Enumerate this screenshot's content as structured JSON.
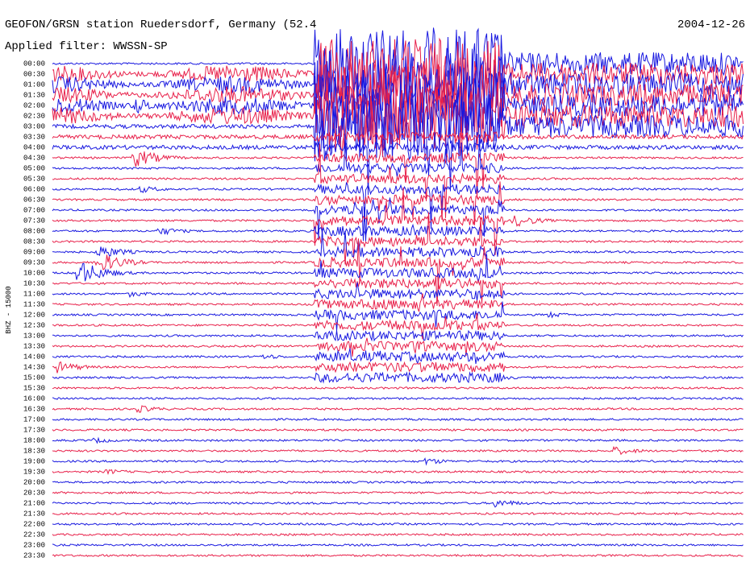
{
  "header": {
    "title": "GEOFON/GRSN station Ruedersdorf, Germany (52.4",
    "date": "2004-12-26",
    "filter": "Applied filter: WWSSN-SP"
  },
  "axis_label": "BHZ - 15000",
  "rows": [
    "00:00",
    "00:30",
    "01:00",
    "01:30",
    "02:00",
    "02:30",
    "03:00",
    "03:30",
    "04:00",
    "04:30",
    "05:00",
    "05:30",
    "06:00",
    "06:30",
    "07:00",
    "07:30",
    "08:00",
    "08:30",
    "09:00",
    "09:30",
    "10:00",
    "10:30",
    "11:00",
    "11:30",
    "12:00",
    "12:30",
    "13:00",
    "13:30",
    "14:00",
    "14:30",
    "15:00",
    "15:30",
    "16:00",
    "16:30",
    "17:00",
    "17:30",
    "18:00",
    "18:30",
    "19:00",
    "19:30",
    "20:00",
    "20:30",
    "21:00",
    "21:30",
    "22:00",
    "22:30",
    "23:00",
    "23:30"
  ]
}
